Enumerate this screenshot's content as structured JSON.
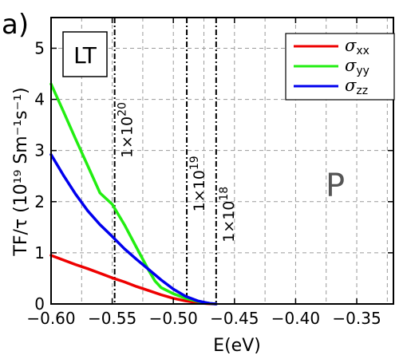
{
  "panel_label": "a)",
  "box_label": "LT",
  "region_label": "P",
  "colors": {
    "sxx": "#ee0000",
    "syy": "#22ee11",
    "szz": "#0000ee"
  },
  "chart_data": {
    "type": "line",
    "xlabel": "E(eV)",
    "ylabel": "TF/τ (10¹⁹ Sm⁻¹s⁻¹)",
    "xlim": [
      -0.6,
      -0.32
    ],
    "ylim": [
      0,
      5.6
    ],
    "x_ticks": [
      "−0.60",
      "−0.55",
      "−0.50",
      "−0.45",
      "−0.40",
      "−0.35"
    ],
    "x_tick_values": [
      -0.6,
      -0.55,
      -0.5,
      -0.45,
      -0.4,
      -0.35
    ],
    "y_ticks": [
      "0",
      "1",
      "2",
      "3",
      "4",
      "5"
    ],
    "y_tick_values": [
      0,
      1,
      2,
      3,
      4,
      5
    ],
    "grid": true,
    "legend_position": "top-right",
    "series": [
      {
        "name": "σxx",
        "symbol": "σ",
        "sub": "xx",
        "color_key": "sxx",
        "x": [
          -0.6,
          -0.59,
          -0.58,
          -0.57,
          -0.56,
          -0.55,
          -0.54,
          -0.53,
          -0.52,
          -0.51,
          -0.5,
          -0.49,
          -0.48,
          -0.475,
          -0.47,
          -0.465
        ],
        "y": [
          0.95,
          0.86,
          0.77,
          0.69,
          0.6,
          0.51,
          0.43,
          0.34,
          0.26,
          0.18,
          0.11,
          0.06,
          0.025,
          0.012,
          0.004,
          0.0
        ]
      },
      {
        "name": "σyy",
        "symbol": "σ",
        "sub": "yy",
        "color_key": "syy",
        "x": [
          -0.6,
          -0.59,
          -0.58,
          -0.57,
          -0.56,
          -0.55,
          -0.54,
          -0.53,
          -0.52,
          -0.515,
          -0.51,
          -0.5,
          -0.49,
          -0.48,
          -0.47,
          -0.465
        ],
        "y": [
          4.3,
          3.77,
          3.23,
          2.7,
          2.17,
          1.95,
          1.55,
          1.1,
          0.65,
          0.45,
          0.32,
          0.2,
          0.11,
          0.05,
          0.01,
          0.0
        ]
      },
      {
        "name": "σzz",
        "symbol": "σ",
        "sub": "zz",
        "color_key": "szz",
        "x": [
          -0.6,
          -0.59,
          -0.58,
          -0.57,
          -0.56,
          -0.55,
          -0.54,
          -0.53,
          -0.52,
          -0.51,
          -0.5,
          -0.49,
          -0.48,
          -0.47,
          -0.465
        ],
        "y": [
          2.92,
          2.52,
          2.15,
          1.82,
          1.55,
          1.32,
          1.08,
          0.87,
          0.67,
          0.47,
          0.29,
          0.15,
          0.06,
          0.01,
          0.0
        ]
      }
    ],
    "vlines": [
      {
        "x": -0.548,
        "label": "1×10",
        "exp": "20",
        "label_y": 3.4
      },
      {
        "x": -0.489,
        "label": "1×10",
        "exp": "19",
        "label_y": 2.35
      },
      {
        "x": -0.465,
        "label": "1×10",
        "exp": "18",
        "label_y": 1.75
      }
    ]
  }
}
